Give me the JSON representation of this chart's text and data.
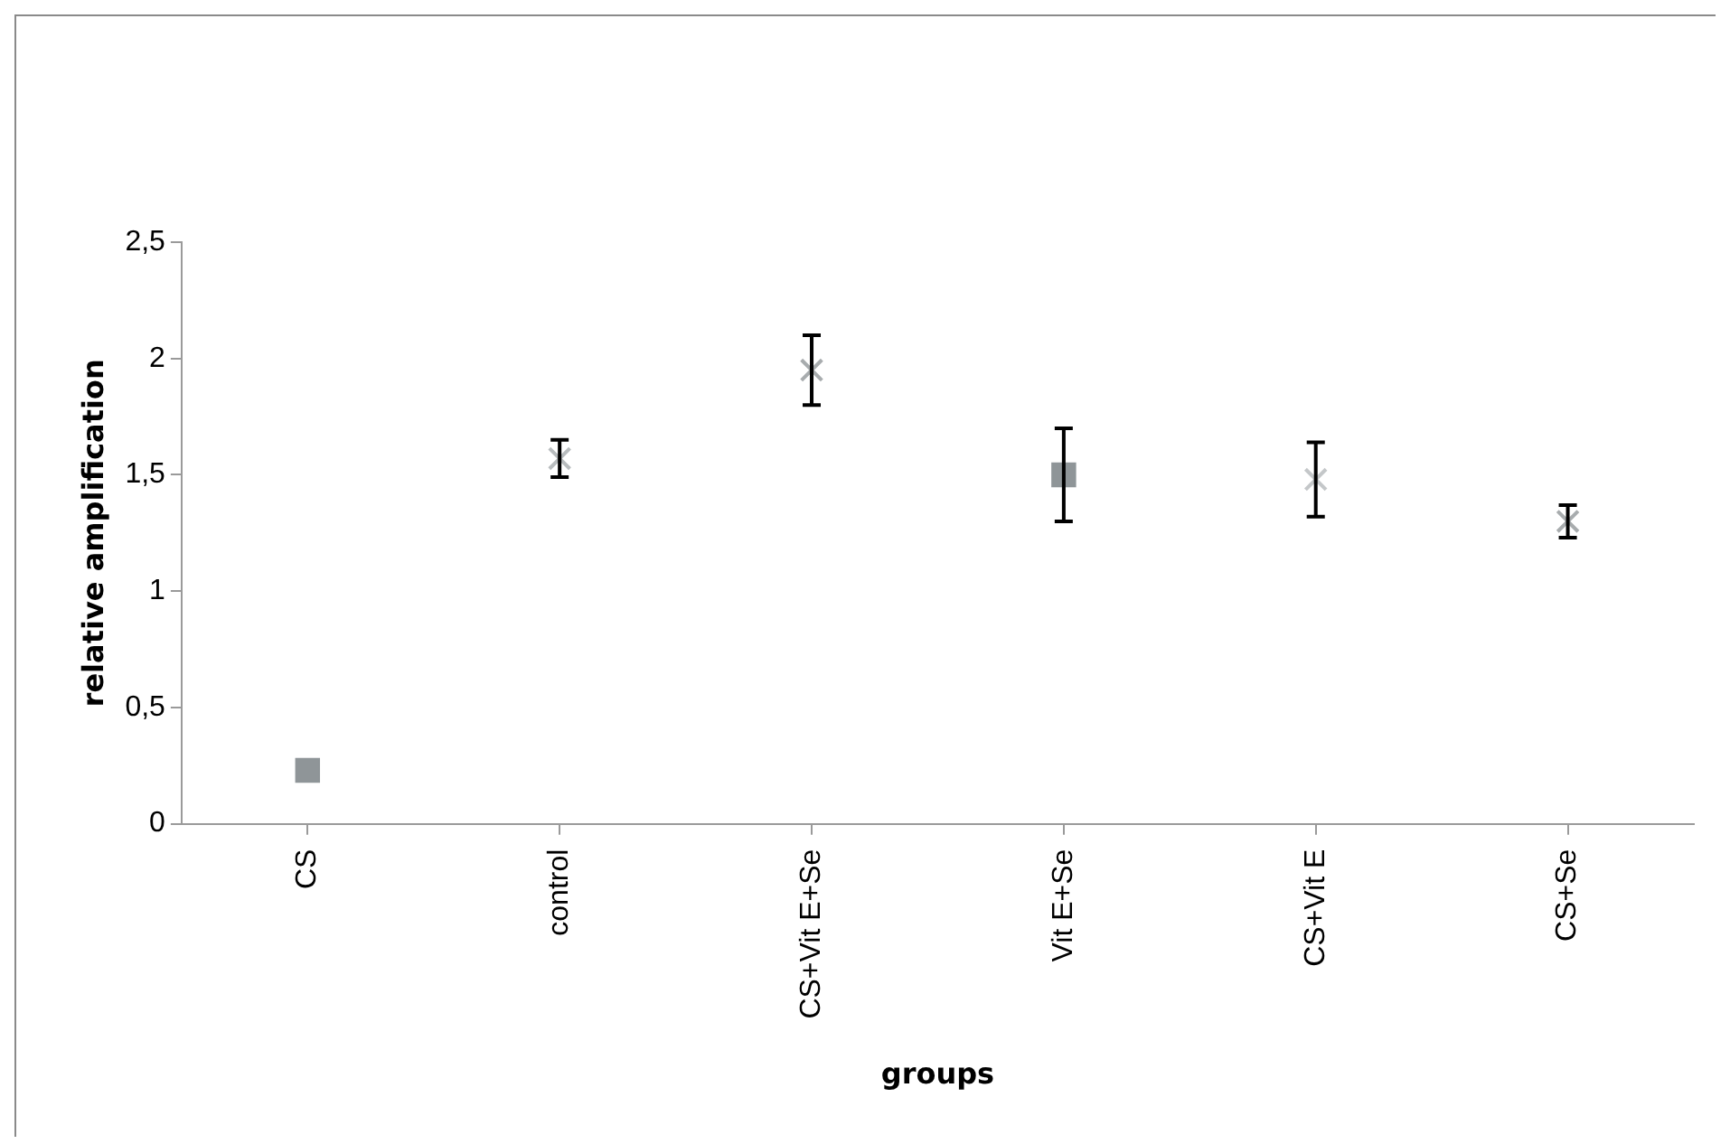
{
  "chart_data": {
    "type": "scatter",
    "xlabel": "groups",
    "ylabel": "relative amplification",
    "categories": [
      "CS",
      "control",
      "CS+Vit E+Se",
      "Vit E+Se",
      "CS+Vit E",
      "CS+Se"
    ],
    "ylim": [
      0,
      2.5
    ],
    "yticks": [
      0,
      {
        "value": 0.5,
        "label": "0,5"
      },
      1,
      {
        "value": 1.5,
        "label": "1,5"
      },
      2,
      {
        "value": 2.5,
        "label": "2,5"
      }
    ],
    "grid": false,
    "legend": false,
    "series": [
      {
        "color": "#8f9598",
        "marker": "square",
        "values": [
          0.23,
          null,
          null,
          null,
          null,
          null
        ],
        "errors": [
          null,
          null,
          null,
          null,
          null,
          null
        ]
      },
      {
        "color": "#b8bcbe",
        "marker": "cross",
        "values": [
          null,
          1.57,
          null,
          null,
          null,
          null
        ],
        "errors": [
          null,
          0.08,
          null,
          null,
          null,
          null
        ]
      },
      {
        "color": "#a8acae",
        "marker": "cross",
        "values": [
          null,
          null,
          1.95,
          null,
          null,
          null
        ],
        "errors": [
          null,
          null,
          0.15,
          null,
          null,
          null
        ]
      },
      {
        "color": "#8f9598",
        "marker": "square",
        "values": [
          null,
          null,
          null,
          1.5,
          null,
          null
        ],
        "errors": [
          null,
          null,
          null,
          0.2,
          null,
          null
        ]
      },
      {
        "color": "#c4c7c9",
        "marker": "cross",
        "values": [
          null,
          null,
          null,
          null,
          1.48,
          null
        ],
        "errors": [
          null,
          null,
          null,
          null,
          0.16,
          null
        ]
      },
      {
        "color": "#a8acae",
        "marker": "cross",
        "values": [
          null,
          null,
          null,
          null,
          null,
          1.3
        ],
        "errors": [
          null,
          null,
          null,
          null,
          null,
          0.07
        ]
      }
    ]
  }
}
